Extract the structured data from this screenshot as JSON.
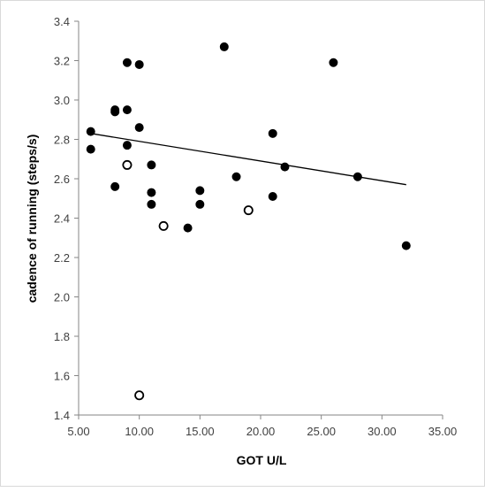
{
  "chart_data": {
    "type": "scatter",
    "xlabel": "GOT U/L",
    "ylabel": "cadence of running (steps/s)",
    "xlim": [
      5.0,
      35.0
    ],
    "ylim": [
      1.4,
      3.4
    ],
    "x_ticks": [
      "5.00",
      "10.00",
      "15.00",
      "20.00",
      "25.00",
      "30.00",
      "35.00"
    ],
    "y_ticks": [
      "1.4",
      "1.6",
      "1.8",
      "2.0",
      "2.2",
      "2.4",
      "2.6",
      "2.8",
      "3.0",
      "3.2",
      "3.4"
    ],
    "grid": false,
    "series": [
      {
        "marker": "filled-circle",
        "color": "#000000",
        "points": [
          [
            6,
            2.84
          ],
          [
            6,
            2.75
          ],
          [
            8,
            2.95
          ],
          [
            8,
            2.94
          ],
          [
            8,
            2.56
          ],
          [
            9,
            3.19
          ],
          [
            9,
            2.95
          ],
          [
            9,
            2.77
          ],
          [
            10,
            3.18
          ],
          [
            10,
            2.86
          ],
          [
            11,
            2.67
          ],
          [
            11,
            2.53
          ],
          [
            11,
            2.47
          ],
          [
            14,
            2.35
          ],
          [
            15,
            2.54
          ],
          [
            15,
            2.47
          ],
          [
            17,
            3.27
          ],
          [
            18,
            2.61
          ],
          [
            21,
            2.83
          ],
          [
            21,
            2.51
          ],
          [
            22,
            2.66
          ],
          [
            26,
            3.19
          ],
          [
            28,
            2.61
          ],
          [
            32,
            2.26
          ]
        ]
      },
      {
        "marker": "open-circle",
        "color": "#000000",
        "points": [
          [
            9,
            2.67
          ],
          [
            12,
            2.36
          ],
          [
            19,
            2.44
          ],
          [
            10,
            1.5
          ]
        ]
      }
    ],
    "trendline": {
      "x1": 6,
      "y1": 2.83,
      "x2": 32,
      "y2": 2.57,
      "color": "#000000"
    }
  }
}
